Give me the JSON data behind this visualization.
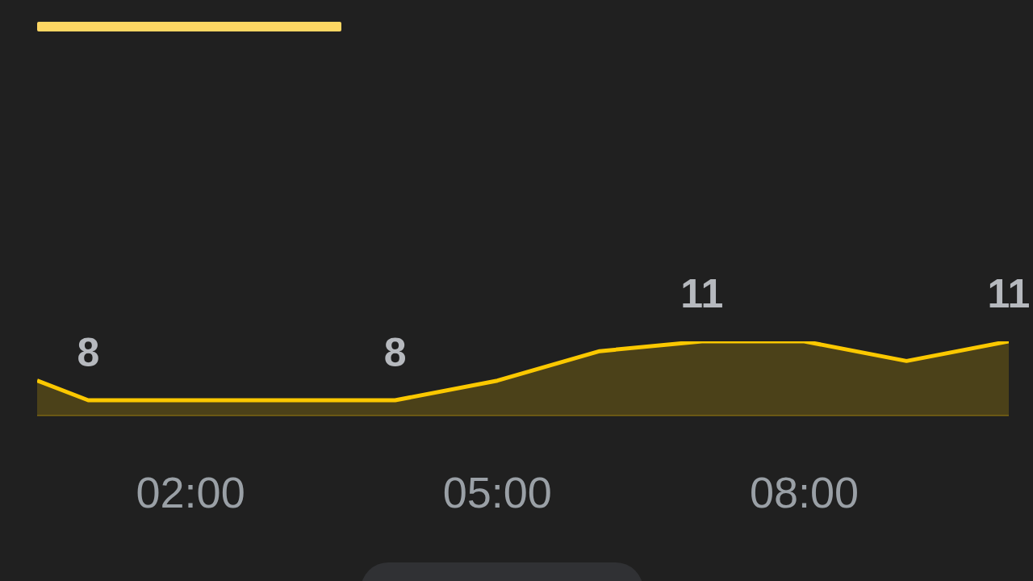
{
  "chart_data": {
    "type": "area",
    "x": [
      0.5,
      1,
      2,
      3,
      4,
      5,
      6,
      7,
      8,
      9,
      10
    ],
    "values": [
      9,
      8,
      8,
      8,
      8,
      9,
      10.5,
      11,
      11,
      10,
      11
    ],
    "value_labels": [
      null,
      "8",
      null,
      null,
      "8",
      null,
      null,
      "11",
      null,
      null,
      "11"
    ],
    "color": "#fbc800",
    "xlim": [
      0.5,
      10
    ],
    "xticks": [
      {
        "value": 2,
        "label": "02:00"
      },
      {
        "value": 5,
        "label": "05:00"
      },
      {
        "value": 8,
        "label": "08:00"
      }
    ],
    "tick_labels": "x"
  }
}
